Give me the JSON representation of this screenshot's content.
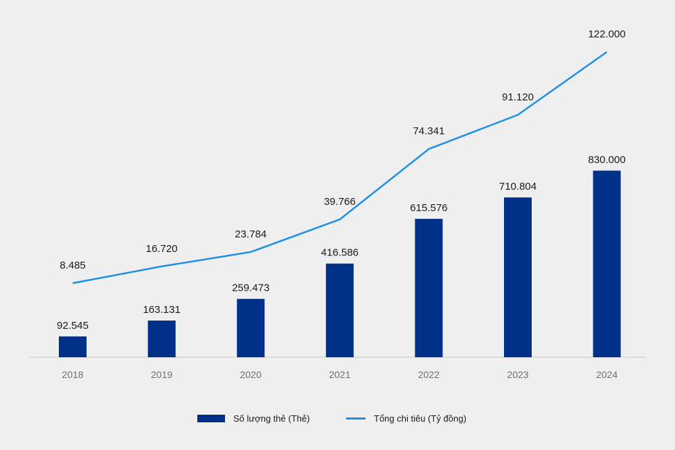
{
  "chart_data": {
    "type": "bar",
    "categories": [
      "2018",
      "2019",
      "2020",
      "2021",
      "2022",
      "2023",
      "2024"
    ],
    "series": [
      {
        "name": "Số lượng thẻ (Thẻ)",
        "type": "bar",
        "values": [
          92545,
          163131,
          259473,
          416586,
          615576,
          710804,
          830000
        ],
        "labels": [
          "92.545",
          "163.131",
          "259.473",
          "416.586",
          "615.576",
          "710.804",
          "830.000"
        ],
        "color": "#003087"
      },
      {
        "name": "Tổng chi tiêu (Tỷ đồng)",
        "type": "line",
        "values": [
          8485,
          16720,
          23784,
          39766,
          74341,
          91120,
          122000
        ],
        "labels": [
          "8.485",
          "16.720",
          "23.784",
          "39.766",
          "74.341",
          "91.120",
          "122.000"
        ],
        "color": "#1e90e6"
      }
    ],
    "title": "",
    "xlabel": "",
    "ylabel": "",
    "grid": false,
    "legend_position": "bottom-center"
  }
}
